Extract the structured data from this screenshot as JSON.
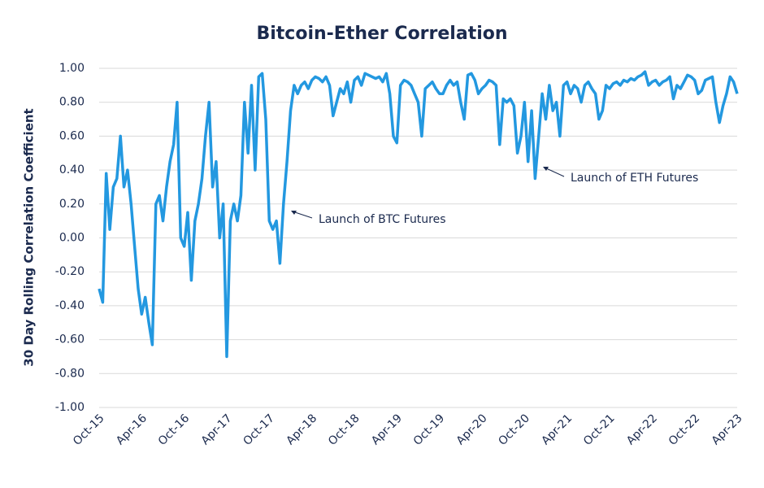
{
  "chart_data": {
    "type": "line",
    "title": "Bitcoin-Ether Correlation",
    "y_label": "30 Day Rolling Correlation Coefficient",
    "color": "#2398e0",
    "grid": true,
    "ylim": [
      -1,
      1
    ],
    "yticks": [
      {
        "value": 1,
        "label": "1.00"
      },
      {
        "value": 0.8,
        "label": "0.80"
      },
      {
        "value": 0.6,
        "label": "0.60"
      },
      {
        "value": 0.4,
        "label": "0.40"
      },
      {
        "value": 0.2,
        "label": "0.20"
      },
      {
        "value": 0,
        "label": "0.00"
      },
      {
        "value": -0.2,
        "label": "-0.20"
      },
      {
        "value": -0.4,
        "label": "-0.40"
      },
      {
        "value": -0.6,
        "label": "-0.60"
      },
      {
        "value": -0.8,
        "label": "-0.80"
      },
      {
        "value": -1,
        "label": "-1.00"
      }
    ],
    "annotations": [
      "Launch of BTC Futures",
      "Launch of ETH Futures"
    ],
    "categories": [
      "Oct-15",
      null,
      null,
      null,
      null,
      null,
      null,
      null,
      null,
      null,
      null,
      null,
      "Apr-16",
      null,
      null,
      null,
      null,
      null,
      null,
      null,
      null,
      null,
      null,
      null,
      "Oct-16",
      null,
      null,
      null,
      null,
      null,
      null,
      null,
      null,
      null,
      null,
      null,
      "Apr-17",
      null,
      null,
      null,
      null,
      null,
      null,
      null,
      null,
      null,
      null,
      null,
      "Oct-17",
      null,
      null,
      null,
      null,
      null,
      null,
      null,
      null,
      null,
      null,
      null,
      "Apr-18",
      null,
      null,
      null,
      null,
      null,
      null,
      null,
      null,
      null,
      null,
      null,
      "Oct-18",
      null,
      null,
      null,
      null,
      null,
      null,
      null,
      null,
      null,
      null,
      null,
      "Apr-19",
      null,
      null,
      null,
      null,
      null,
      null,
      null,
      null,
      null,
      null,
      null,
      "Oct-19",
      null,
      null,
      null,
      null,
      null,
      null,
      null,
      null,
      null,
      null,
      null,
      "Apr-20",
      null,
      null,
      null,
      null,
      null,
      null,
      null,
      null,
      null,
      null,
      null,
      "Oct-20",
      null,
      null,
      null,
      null,
      null,
      null,
      null,
      null,
      null,
      null,
      null,
      "Apr-21",
      null,
      null,
      null,
      null,
      null,
      null,
      null,
      null,
      null,
      null,
      null,
      "Oct-21",
      null,
      null,
      null,
      null,
      null,
      null,
      null,
      null,
      null,
      null,
      null,
      "Apr-22",
      null,
      null,
      null,
      null,
      null,
      null,
      null,
      null,
      null,
      null,
      null,
      "Oct-22",
      null,
      null,
      null,
      null,
      null,
      null,
      null,
      null,
      null,
      null,
      null,
      "Apr-23"
    ],
    "values": [
      -0.3,
      -0.38,
      0.38,
      0.05,
      0.3,
      0.35,
      0.6,
      0.3,
      0.4,
      0.2,
      -0.05,
      -0.3,
      -0.45,
      -0.35,
      -0.5,
      -0.63,
      0.2,
      0.25,
      0.1,
      0.3,
      0.45,
      0.55,
      0.8,
      0.0,
      -0.05,
      0.15,
      -0.25,
      0.1,
      0.2,
      0.35,
      0.6,
      0.8,
      0.3,
      0.45,
      0.0,
      0.2,
      -0.7,
      0.1,
      0.2,
      0.1,
      0.25,
      0.8,
      0.5,
      0.9,
      0.4,
      0.95,
      0.97,
      0.7,
      0.1,
      0.05,
      0.1,
      -0.15,
      0.2,
      0.45,
      0.75,
      0.9,
      0.85,
      0.9,
      0.92,
      0.88,
      0.93,
      0.95,
      0.94,
      0.92,
      0.95,
      0.9,
      0.72,
      0.8,
      0.88,
      0.85,
      0.92,
      0.8,
      0.93,
      0.95,
      0.9,
      0.97,
      0.96,
      0.95,
      0.94,
      0.95,
      0.92,
      0.97,
      0.85,
      0.6,
      0.56,
      0.9,
      0.93,
      0.92,
      0.9,
      0.85,
      0.8,
      0.6,
      0.88,
      0.9,
      0.92,
      0.88,
      0.85,
      0.85,
      0.9,
      0.93,
      0.9,
      0.92,
      0.8,
      0.7,
      0.96,
      0.97,
      0.93,
      0.85,
      0.88,
      0.9,
      0.93,
      0.92,
      0.9,
      0.55,
      0.82,
      0.8,
      0.82,
      0.78,
      0.5,
      0.6,
      0.8,
      0.45,
      0.75,
      0.35,
      0.6,
      0.85,
      0.7,
      0.9,
      0.75,
      0.8,
      0.6,
      0.9,
      0.92,
      0.85,
      0.9,
      0.88,
      0.8,
      0.9,
      0.92,
      0.88,
      0.85,
      0.7,
      0.75,
      0.9,
      0.88,
      0.91,
      0.92,
      0.9,
      0.93,
      0.92,
      0.94,
      0.93,
      0.95,
      0.96,
      0.98,
      0.9,
      0.92,
      0.93,
      0.9,
      0.92,
      0.93,
      0.95,
      0.82,
      0.9,
      0.88,
      0.92,
      0.96,
      0.95,
      0.93,
      0.85,
      0.87,
      0.93,
      0.94,
      0.95,
      0.8,
      0.68,
      0.78,
      0.85,
      0.95,
      0.92,
      0.85
    ]
  }
}
